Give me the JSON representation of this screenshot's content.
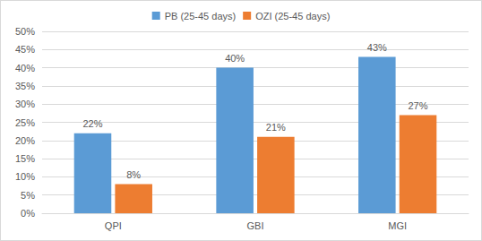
{
  "chart_data": {
    "type": "bar",
    "categories": [
      "QPI",
      "GBI",
      "MGI"
    ],
    "series": [
      {
        "name": "PB (25-45 days)",
        "color": "#5b9bd5",
        "values": [
          22,
          40,
          43
        ],
        "value_labels": [
          "22%",
          "40%",
          "43%"
        ]
      },
      {
        "name": "OZI (25-45 days)",
        "color": "#ed7d31",
        "values": [
          8,
          21,
          27
        ],
        "value_labels": [
          "8%",
          "21%",
          "27%"
        ]
      }
    ],
    "ylim": [
      0,
      50
    ],
    "yticks": [
      {
        "value": 0,
        "label": "0%"
      },
      {
        "value": 5,
        "label": "5%"
      },
      {
        "value": 10,
        "label": "10%"
      },
      {
        "value": 15,
        "label": "15%"
      },
      {
        "value": 20,
        "label": "20%"
      },
      {
        "value": 25,
        "label": "25%"
      },
      {
        "value": 30,
        "label": "30%"
      },
      {
        "value": 35,
        "label": "35%"
      },
      {
        "value": 40,
        "label": "40%"
      },
      {
        "value": 45,
        "label": "45%"
      },
      {
        "value": 50,
        "label": "50%"
      }
    ],
    "grid": true,
    "legend": "top",
    "data_labels": true
  }
}
